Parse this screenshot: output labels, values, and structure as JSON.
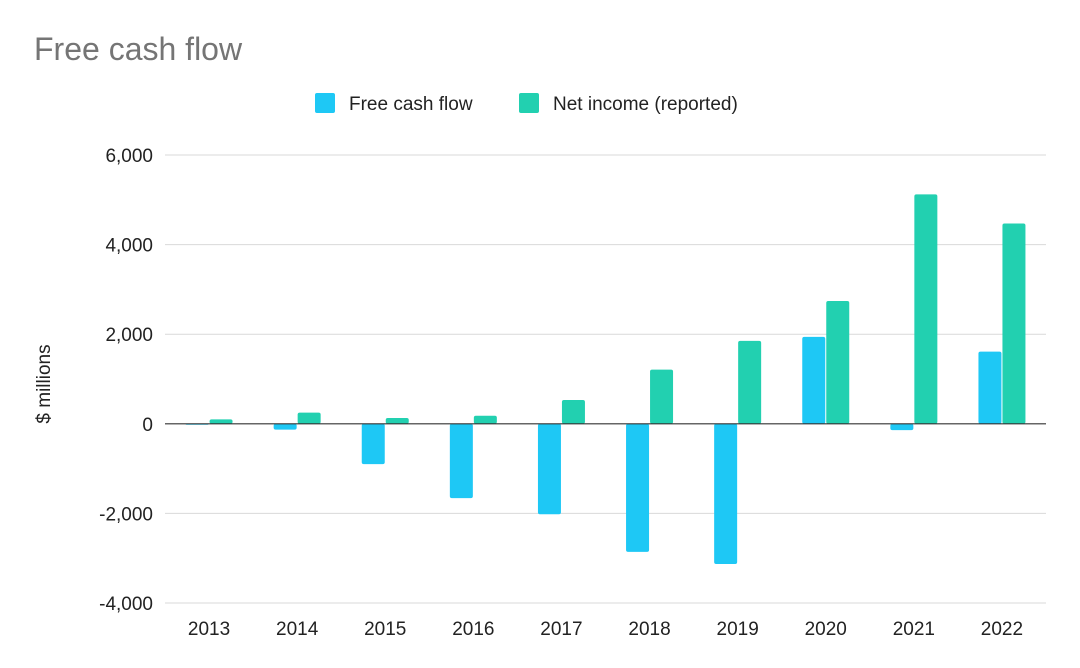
{
  "chart_data": {
    "type": "bar",
    "title": "Free cash flow",
    "xlabel": "",
    "ylabel": "$ millions",
    "categories": [
      "2013",
      "2014",
      "2015",
      "2016",
      "2017",
      "2018",
      "2019",
      "2020",
      "2021",
      "2022"
    ],
    "series": [
      {
        "name": "Free cash flow",
        "color": "#1ec8f5",
        "values": [
          -20,
          -130,
          -900,
          -1660,
          -2020,
          -2860,
          -3130,
          1940,
          -140,
          1610
        ]
      },
      {
        "name": "Net income (reported)",
        "color": "#22d0b0",
        "values": [
          100,
          250,
          130,
          180,
          530,
          1210,
          1850,
          2740,
          5120,
          4470
        ]
      }
    ],
    "ylim": [
      -4000,
      6000
    ],
    "yticks": [
      6000,
      4000,
      2000,
      0,
      -2000,
      -4000
    ],
    "ytick_labels": [
      "6,000",
      "4,000",
      "2,000",
      "0",
      "-2,000",
      "-4,000"
    ],
    "grid": true,
    "legend_position": "top-center"
  }
}
